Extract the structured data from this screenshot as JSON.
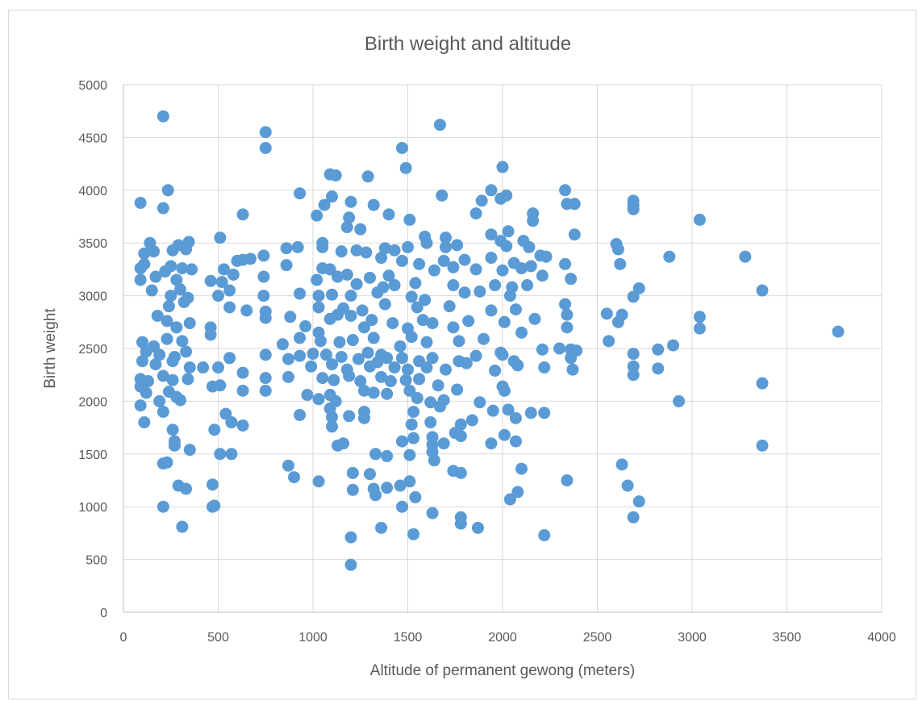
{
  "chart_data": {
    "type": "scatter",
    "title": "Birth weight and altitude",
    "xlabel": "Altitude of permanent gewong (meters)",
    "ylabel": "Birth weight",
    "xlim": [
      0,
      4000
    ],
    "ylim": [
      0,
      5000
    ],
    "xticks": [
      "0",
      "500",
      "1000",
      "1500",
      "2000",
      "2500",
      "3000",
      "3500",
      "4000"
    ],
    "yticks": [
      "0",
      "500",
      "1000",
      "1500",
      "2000",
      "2500",
      "3000",
      "3500",
      "4000",
      "4500",
      "5000"
    ],
    "grid": "vertical and horizontal major gridlines",
    "legend": "none",
    "marker_color": "#5b9bd5",
    "points": [
      [
        210,
        4700
      ],
      [
        750,
        4550
      ],
      [
        750,
        4400
      ],
      [
        1670,
        4620
      ],
      [
        1470,
        4400
      ],
      [
        1490,
        4210
      ],
      [
        2000,
        4220
      ],
      [
        1090,
        4150
      ],
      [
        1120,
        4140
      ],
      [
        1290,
        4130
      ],
      [
        235,
        4000
      ],
      [
        2330,
        4000
      ],
      [
        1940,
        4000
      ],
      [
        2020,
        3950
      ],
      [
        1100,
        3940
      ],
      [
        1680,
        3950
      ],
      [
        930,
        3970
      ],
      [
        90,
        3880
      ],
      [
        210,
        3830
      ],
      [
        1200,
        3890
      ],
      [
        1890,
        3900
      ],
      [
        1990,
        3920
      ],
      [
        2690,
        3900
      ],
      [
        2690,
        3860
      ],
      [
        2690,
        3820
      ],
      [
        2340,
        3870
      ],
      [
        2380,
        3870
      ],
      [
        1060,
        3860
      ],
      [
        1320,
        3860
      ],
      [
        1190,
        3740
      ],
      [
        630,
        3770
      ],
      [
        1020,
        3760
      ],
      [
        1400,
        3770
      ],
      [
        1510,
        3720
      ],
      [
        1860,
        3780
      ],
      [
        2160,
        3780
      ],
      [
        2160,
        3710
      ],
      [
        3040,
        3720
      ],
      [
        1180,
        3650
      ],
      [
        1250,
        3630
      ],
      [
        2030,
        3610
      ],
      [
        1590,
        3560
      ],
      [
        2380,
        3580
      ],
      [
        510,
        3550
      ],
      [
        140,
        3500
      ],
      [
        290,
        3480
      ],
      [
        345,
        3510
      ],
      [
        1990,
        3520
      ],
      [
        1050,
        3500
      ],
      [
        1700,
        3550
      ],
      [
        1940,
        3580
      ],
      [
        2110,
        3520
      ],
      [
        2600,
        3490
      ],
      [
        1600,
        3500
      ],
      [
        860,
        3450
      ],
      [
        920,
        3460
      ],
      [
        1050,
        3460
      ],
      [
        1150,
        3420
      ],
      [
        1380,
        3450
      ],
      [
        1430,
        3430
      ],
      [
        1500,
        3460
      ],
      [
        1700,
        3460
      ],
      [
        1760,
        3480
      ],
      [
        2020,
        3470
      ],
      [
        2140,
        3460
      ],
      [
        2610,
        3440
      ],
      [
        2880,
        3370
      ],
      [
        3280,
        3370
      ],
      [
        2200,
        3380
      ],
      [
        2230,
        3370
      ],
      [
        2330,
        3300
      ],
      [
        2620,
        3300
      ],
      [
        110,
        3400
      ],
      [
        160,
        3420
      ],
      [
        260,
        3430
      ],
      [
        330,
        3440
      ],
      [
        670,
        3350
      ],
      [
        740,
        3380
      ],
      [
        1230,
        3430
      ],
      [
        1280,
        3410
      ],
      [
        1560,
        3300
      ],
      [
        1690,
        3330
      ],
      [
        1800,
        3340
      ],
      [
        1940,
        3360
      ],
      [
        2060,
        3310
      ],
      [
        2150,
        3280
      ],
      [
        1360,
        3360
      ],
      [
        1470,
        3330
      ],
      [
        90,
        3260
      ],
      [
        110,
        3300
      ],
      [
        220,
        3230
      ],
      [
        250,
        3280
      ],
      [
        310,
        3260
      ],
      [
        360,
        3250
      ],
      [
        530,
        3250
      ],
      [
        600,
        3330
      ],
      [
        630,
        3340
      ],
      [
        860,
        3290
      ],
      [
        1050,
        3260
      ],
      [
        1090,
        3250
      ],
      [
        1180,
        3200
      ],
      [
        1300,
        3170
      ],
      [
        1400,
        3190
      ],
      [
        1640,
        3240
      ],
      [
        1740,
        3270
      ],
      [
        1860,
        3250
      ],
      [
        2000,
        3240
      ],
      [
        2100,
        3260
      ],
      [
        2210,
        3190
      ],
      [
        2360,
        3160
      ],
      [
        3370,
        3050
      ],
      [
        2720,
        3070
      ],
      [
        90,
        3150
      ],
      [
        170,
        3180
      ],
      [
        280,
        3150
      ],
      [
        460,
        3140
      ],
      [
        520,
        3130
      ],
      [
        580,
        3200
      ],
      [
        740,
        3180
      ],
      [
        1020,
        3150
      ],
      [
        1130,
        3180
      ],
      [
        1230,
        3110
      ],
      [
        1370,
        3080
      ],
      [
        1430,
        3100
      ],
      [
        1540,
        3120
      ],
      [
        1740,
        3100
      ],
      [
        1960,
        3100
      ],
      [
        2050,
        3080
      ],
      [
        2130,
        3100
      ],
      [
        2330,
        2920
      ],
      [
        2690,
        2990
      ],
      [
        3040,
        2800
      ],
      [
        150,
        3050
      ],
      [
        250,
        3000
      ],
      [
        300,
        3060
      ],
      [
        340,
        2980
      ],
      [
        500,
        3000
      ],
      [
        560,
        3050
      ],
      [
        740,
        3000
      ],
      [
        930,
        3020
      ],
      [
        1030,
        3000
      ],
      [
        1100,
        3010
      ],
      [
        1200,
        3000
      ],
      [
        1340,
        3030
      ],
      [
        1520,
        2990
      ],
      [
        1590,
        2960
      ],
      [
        1800,
        3030
      ],
      [
        1880,
        3040
      ],
      [
        2040,
        3000
      ],
      [
        240,
        2900
      ],
      [
        320,
        2940
      ],
      [
        560,
        2890
      ],
      [
        650,
        2860
      ],
      [
        750,
        2850
      ],
      [
        1030,
        2890
      ],
      [
        1160,
        2880
      ],
      [
        1260,
        2860
      ],
      [
        1380,
        2920
      ],
      [
        1550,
        2890
      ],
      [
        1720,
        2900
      ],
      [
        1940,
        2860
      ],
      [
        2070,
        2870
      ],
      [
        2170,
        2780
      ],
      [
        2550,
        2830
      ],
      [
        2630,
        2820
      ],
      [
        2340,
        2820
      ],
      [
        180,
        2810
      ],
      [
        230,
        2760
      ],
      [
        750,
        2790
      ],
      [
        880,
        2800
      ],
      [
        1090,
        2780
      ],
      [
        1130,
        2820
      ],
      [
        1200,
        2810
      ],
      [
        1310,
        2770
      ],
      [
        1420,
        2740
      ],
      [
        1580,
        2770
      ],
      [
        1630,
        2740
      ],
      [
        1820,
        2760
      ],
      [
        2010,
        2750
      ],
      [
        2610,
        2750
      ],
      [
        3040,
        2690
      ],
      [
        3770,
        2660
      ],
      [
        280,
        2700
      ],
      [
        350,
        2740
      ],
      [
        460,
        2700
      ],
      [
        960,
        2710
      ],
      [
        1030,
        2650
      ],
      [
        1270,
        2700
      ],
      [
        1500,
        2690
      ],
      [
        1740,
        2700
      ],
      [
        2100,
        2650
      ],
      [
        2340,
        2700
      ],
      [
        2560,
        2570
      ],
      [
        100,
        2560
      ],
      [
        160,
        2520
      ],
      [
        230,
        2590
      ],
      [
        310,
        2570
      ],
      [
        460,
        2630
      ],
      [
        840,
        2540
      ],
      [
        930,
        2600
      ],
      [
        1040,
        2570
      ],
      [
        1140,
        2560
      ],
      [
        1210,
        2580
      ],
      [
        1320,
        2600
      ],
      [
        1460,
        2520
      ],
      [
        1520,
        2610
      ],
      [
        1600,
        2560
      ],
      [
        1770,
        2570
      ],
      [
        1900,
        2590
      ],
      [
        1990,
        2460
      ],
      [
        2210,
        2490
      ],
      [
        2300,
        2500
      ],
      [
        2360,
        2490
      ],
      [
        2390,
        2480
      ],
      [
        2690,
        2450
      ],
      [
        2820,
        2490
      ],
      [
        2900,
        2530
      ],
      [
        120,
        2470
      ],
      [
        190,
        2440
      ],
      [
        270,
        2420
      ],
      [
        330,
        2470
      ],
      [
        420,
        2320
      ],
      [
        560,
        2410
      ],
      [
        750,
        2440
      ],
      [
        870,
        2400
      ],
      [
        930,
        2430
      ],
      [
        1000,
        2450
      ],
      [
        1070,
        2440
      ],
      [
        1150,
        2420
      ],
      [
        1240,
        2400
      ],
      [
        1290,
        2460
      ],
      [
        1360,
        2440
      ],
      [
        1390,
        2410
      ],
      [
        1470,
        2410
      ],
      [
        1560,
        2380
      ],
      [
        1630,
        2410
      ],
      [
        1770,
        2380
      ],
      [
        1860,
        2430
      ],
      [
        2000,
        2440
      ],
      [
        2060,
        2380
      ],
      [
        2080,
        2340
      ],
      [
        2360,
        2410
      ],
      [
        100,
        2380
      ],
      [
        170,
        2350
      ],
      [
        260,
        2380
      ],
      [
        350,
        2320
      ],
      [
        500,
        2320
      ],
      [
        990,
        2330
      ],
      [
        1100,
        2350
      ],
      [
        1180,
        2300
      ],
      [
        1300,
        2330
      ],
      [
        1340,
        2370
      ],
      [
        1430,
        2320
      ],
      [
        1500,
        2300
      ],
      [
        1600,
        2320
      ],
      [
        1700,
        2300
      ],
      [
        1810,
        2360
      ],
      [
        1960,
        2290
      ],
      [
        2220,
        2320
      ],
      [
        2370,
        2300
      ],
      [
        2690,
        2330
      ],
      [
        2690,
        2250
      ],
      [
        2820,
        2310
      ],
      [
        90,
        2210
      ],
      [
        130,
        2190
      ],
      [
        210,
        2240
      ],
      [
        260,
        2200
      ],
      [
        340,
        2210
      ],
      [
        470,
        2140
      ],
      [
        630,
        2270
      ],
      [
        750,
        2220
      ],
      [
        870,
        2230
      ],
      [
        1050,
        2220
      ],
      [
        1110,
        2200
      ],
      [
        1190,
        2240
      ],
      [
        1250,
        2190
      ],
      [
        1360,
        2230
      ],
      [
        1410,
        2190
      ],
      [
        1490,
        2200
      ],
      [
        1560,
        2210
      ],
      [
        1660,
        2150
      ],
      [
        1760,
        2110
      ],
      [
        2000,
        2140
      ],
      [
        2010,
        2100
      ],
      [
        3370,
        2170
      ],
      [
        90,
        2140
      ],
      [
        120,
        2080
      ],
      [
        240,
        2090
      ],
      [
        280,
        2040
      ],
      [
        510,
        2150
      ],
      [
        630,
        2100
      ],
      [
        750,
        2100
      ],
      [
        970,
        2060
      ],
      [
        1030,
        2020
      ],
      [
        1090,
        2060
      ],
      [
        1120,
        2000
      ],
      [
        1270,
        2100
      ],
      [
        1320,
        2080
      ],
      [
        1390,
        2070
      ],
      [
        1510,
        2100
      ],
      [
        1550,
        2030
      ],
      [
        1620,
        1990
      ],
      [
        1690,
        2010
      ],
      [
        1880,
        1990
      ],
      [
        2930,
        2000
      ],
      [
        90,
        1960
      ],
      [
        190,
        2000
      ],
      [
        300,
        2010
      ],
      [
        1090,
        1930
      ],
      [
        1270,
        1900
      ],
      [
        1530,
        1900
      ],
      [
        1670,
        1950
      ],
      [
        1950,
        1910
      ],
      [
        2030,
        1920
      ],
      [
        2150,
        1890
      ],
      [
        2220,
        1890
      ],
      [
        110,
        1800
      ],
      [
        210,
        1900
      ],
      [
        540,
        1880
      ],
      [
        570,
        1800
      ],
      [
        630,
        1770
      ],
      [
        930,
        1870
      ],
      [
        1100,
        1850
      ],
      [
        1190,
        1860
      ],
      [
        1270,
        1840
      ],
      [
        1520,
        1780
      ],
      [
        1620,
        1800
      ],
      [
        1780,
        1780
      ],
      [
        1840,
        1820
      ],
      [
        2070,
        1840
      ],
      [
        260,
        1730
      ],
      [
        480,
        1730
      ],
      [
        1100,
        1760
      ],
      [
        1130,
        1580
      ],
      [
        1160,
        1600
      ],
      [
        1470,
        1620
      ],
      [
        1530,
        1650
      ],
      [
        1630,
        1660
      ],
      [
        1750,
        1700
      ],
      [
        1780,
        1670
      ],
      [
        1940,
        1600
      ],
      [
        2010,
        1680
      ],
      [
        2070,
        1620
      ],
      [
        270,
        1620
      ],
      [
        270,
        1580
      ],
      [
        350,
        1540
      ],
      [
        510,
        1500
      ],
      [
        570,
        1500
      ],
      [
        1330,
        1500
      ],
      [
        1390,
        1480
      ],
      [
        1510,
        1490
      ],
      [
        1630,
        1590
      ],
      [
        1690,
        1600
      ],
      [
        3370,
        1580
      ],
      [
        2630,
        1400
      ],
      [
        210,
        1410
      ],
      [
        230,
        1420
      ],
      [
        870,
        1390
      ],
      [
        1210,
        1320
      ],
      [
        1300,
        1310
      ],
      [
        1630,
        1520
      ],
      [
        1640,
        1440
      ],
      [
        1740,
        1340
      ],
      [
        1780,
        1320
      ],
      [
        2100,
        1360
      ],
      [
        900,
        1280
      ],
      [
        1030,
        1240
      ],
      [
        1320,
        1170
      ],
      [
        1390,
        1180
      ],
      [
        1460,
        1200
      ],
      [
        1510,
        1240
      ],
      [
        2340,
        1250
      ],
      [
        2660,
        1200
      ],
      [
        290,
        1200
      ],
      [
        330,
        1170
      ],
      [
        470,
        1210
      ],
      [
        1210,
        1160
      ],
      [
        1330,
        1110
      ],
      [
        1540,
        1090
      ],
      [
        2040,
        1070
      ],
      [
        2080,
        1140
      ],
      [
        2720,
        1050
      ],
      [
        470,
        1000
      ],
      [
        480,
        1010
      ],
      [
        210,
        1000
      ],
      [
        1470,
        1000
      ],
      [
        1630,
        940
      ],
      [
        1780,
        900
      ],
      [
        1780,
        840
      ],
      [
        1870,
        800
      ],
      [
        2690,
        900
      ],
      [
        310,
        810
      ],
      [
        1360,
        800
      ],
      [
        1530,
        740
      ],
      [
        1200,
        710
      ],
      [
        2220,
        730
      ],
      [
        1200,
        450
      ]
    ]
  }
}
